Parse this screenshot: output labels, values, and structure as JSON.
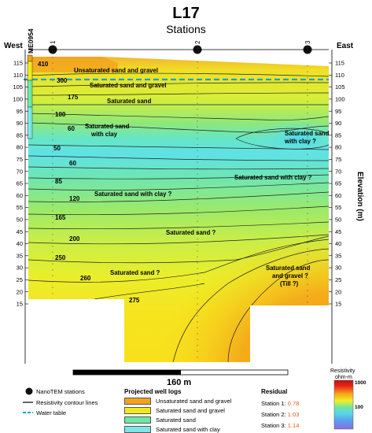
{
  "title": "L17",
  "subtitle": "Stations",
  "west_label": "West",
  "east_label": "East",
  "elevation_label": "Elevation (m)",
  "well_label": "ME0954",
  "stations": [
    "1",
    "2",
    "3"
  ],
  "elevation_ticks": [
    "115",
    "110",
    "105",
    "100",
    "95",
    "90",
    "85",
    "80",
    "75",
    "70",
    "65",
    "60",
    "55",
    "50",
    "45",
    "40",
    "35",
    "30",
    "25",
    "20",
    "15"
  ],
  "contour_labels": [
    "410",
    "300",
    "175",
    "100",
    "60",
    "50",
    "60",
    "85",
    "120",
    "165",
    "200",
    "250",
    "260",
    "275"
  ],
  "units": [
    "Unsaturated sand and gravel",
    "Saturated sand and gravel",
    "Saturated sand",
    "Saturated sand",
    "with clay",
    "Saturated sand",
    "with clay ?",
    "Saturated sand with clay ?",
    "Saturated sand with clay ?",
    "Saturated sand ?",
    "Saturated sand ?",
    "Saturated sand",
    "and gravel ?",
    "(Till ?)"
  ],
  "scale_label": "160 m",
  "colorbar": {
    "title": "Resistivity",
    "unit": "ohm-m",
    "max": "1000",
    "mid": "100"
  },
  "legend_symbols": {
    "stations": "NanoTEM stations",
    "contours": "Resistivity contour lines",
    "water": "Water table"
  },
  "well_logs": {
    "title": "Projected well logs",
    "items": [
      {
        "label": "Unsaturated sand and gravel",
        "color": "#f2a21e"
      },
      {
        "label": "Saturated sand and gravel",
        "color": "#f0ea1c"
      },
      {
        "label": "Saturated sand",
        "color": "#6ee8a0"
      },
      {
        "label": "Saturated sand with clay",
        "color": "#7ee6e6"
      }
    ]
  },
  "residual": {
    "title": "Residual",
    "items": [
      {
        "label": "Station 1:",
        "value": "0.78"
      },
      {
        "label": "Station 2:",
        "value": "1.03"
      },
      {
        "label": "Station 3:",
        "value": "1.14"
      }
    ]
  },
  "colors": {
    "accent": "#e05a1a",
    "water_table": "#1aa3c9"
  }
}
